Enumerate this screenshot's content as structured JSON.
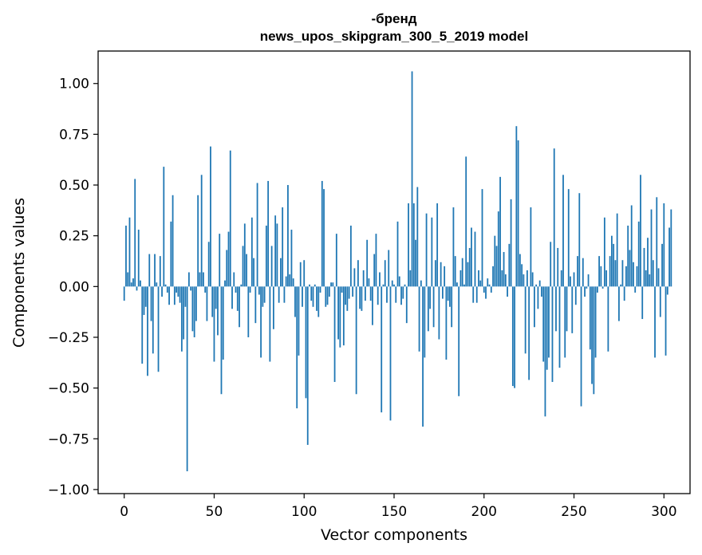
{
  "chart_data": {
    "type": "bar",
    "title_lines": [
      "-бренд",
      "news_upos_skipgram_300_5_2019 model"
    ],
    "xlabel": "Vector components",
    "ylabel": "Components values",
    "xlim": [
      -14.5,
      314.5
    ],
    "ylim": [
      -1.02,
      1.16
    ],
    "xticks": [
      0,
      50,
      100,
      150,
      200,
      250,
      300
    ],
    "xtick_labels": [
      "0",
      "50",
      "100",
      "150",
      "200",
      "250",
      "300"
    ],
    "yticks": [
      -1.0,
      -0.75,
      -0.5,
      -0.25,
      0.0,
      0.25,
      0.5,
      0.75,
      1.0
    ],
    "ytick_labels": [
      "−1.00",
      "−0.75",
      "−0.50",
      "−0.25",
      "0.00",
      "0.25",
      "0.50",
      "0.75",
      "1.00"
    ],
    "grid": false,
    "bar_color": "#1f77b4",
    "values": [
      -0.07,
      0.3,
      0.07,
      0.34,
      0.02,
      0.04,
      0.53,
      -0.02,
      0.28,
      0.03,
      -0.38,
      -0.14,
      -0.1,
      -0.44,
      0.16,
      -0.17,
      -0.33,
      0.16,
      0.02,
      -0.42,
      0.15,
      -0.05,
      0.59,
      0.01,
      -0.03,
      -0.09,
      0.32,
      0.45,
      -0.09,
      -0.03,
      -0.05,
      -0.08,
      -0.32,
      -0.26,
      -0.1,
      -0.91,
      0.07,
      -0.02,
      -0.22,
      -0.25,
      -0.17,
      0.45,
      0.07,
      0.55,
      0.07,
      -0.03,
      -0.17,
      0.22,
      0.69,
      -0.15,
      -0.37,
      -0.11,
      -0.24,
      0.26,
      -0.53,
      -0.36,
      0.03,
      0.18,
      0.27,
      0.67,
      -0.11,
      0.07,
      -0.03,
      -0.12,
      -0.2,
      0.01,
      0.2,
      0.31,
      0.16,
      -0.25,
      -0.03,
      0.34,
      0.14,
      -0.18,
      0.51,
      -0.04,
      -0.35,
      -0.1,
      -0.08,
      0.3,
      0.52,
      -0.37,
      0.2,
      -0.21,
      0.35,
      0.31,
      -0.08,
      0.14,
      0.39,
      -0.08,
      0.05,
      0.5,
      0.06,
      0.28,
      0.04,
      -0.15,
      -0.6,
      -0.34,
      0.12,
      -0.1,
      0.13,
      -0.55,
      -0.78,
      0.01,
      -0.07,
      -0.1,
      0.01,
      -0.12,
      -0.15,
      -0.03,
      0.52,
      0.48,
      -0.1,
      -0.09,
      -0.05,
      0.02,
      0.02,
      -0.47,
      0.26,
      -0.26,
      -0.3,
      -0.03,
      -0.29,
      -0.09,
      -0.12,
      -0.06,
      0.3,
      -0.05,
      0.09,
      -0.53,
      0.13,
      -0.11,
      -0.12,
      0.08,
      -0.07,
      0.23,
      0.04,
      -0.07,
      -0.19,
      0.16,
      0.26,
      -0.09,
      0.07,
      -0.62,
      0.01,
      0.13,
      -0.08,
      0.18,
      -0.66,
      0.03,
      0.01,
      -0.08,
      0.32,
      0.05,
      -0.09,
      -0.06,
      0.01,
      -0.18,
      0.41,
      0.08,
      1.06,
      0.41,
      0.23,
      0.49,
      -0.32,
      0.03,
      -0.69,
      -0.35,
      0.36,
      -0.22,
      -0.11,
      0.34,
      -0.2,
      0.13,
      0.41,
      -0.26,
      0.12,
      -0.06,
      0.1,
      -0.36,
      -0.07,
      -0.1,
      -0.2,
      0.39,
      0.15,
      0.02,
      -0.54,
      0.08,
      0.14,
      0.01,
      0.64,
      0.12,
      0.19,
      0.29,
      -0.08,
      0.27,
      -0.08,
      0.08,
      0.03,
      0.48,
      -0.03,
      -0.06,
      0.04,
      0.01,
      -0.03,
      0.1,
      0.25,
      0.2,
      0.37,
      0.54,
      0.08,
      0.17,
      0.06,
      -0.05,
      0.21,
      0.43,
      -0.49,
      -0.5,
      0.79,
      0.72,
      0.16,
      0.11,
      0.06,
      -0.33,
      0.08,
      -0.46,
      0.39,
      0.07,
      -0.2,
      0.01,
      -0.11,
      0.03,
      -0.05,
      -0.37,
      -0.64,
      -0.41,
      -0.35,
      0.22,
      -0.47,
      0.68,
      -0.22,
      0.19,
      -0.4,
      0.08,
      0.55,
      -0.35,
      -0.22,
      0.48,
      0.05,
      -0.23,
      0.07,
      -0.09,
      0.15,
      0.46,
      -0.59,
      0.14,
      -0.05,
      -0.01,
      0.06,
      -0.31,
      -0.48,
      -0.53,
      -0.35,
      -0.03,
      0.15,
      0.1,
      -0.01,
      0.34,
      0.08,
      -0.32,
      0.15,
      0.25,
      0.21,
      0.13,
      0.36,
      -0.17,
      0.01,
      0.13,
      -0.07,
      0.1,
      0.3,
      0.18,
      0.4,
      0.12,
      -0.03,
      0.1,
      0.32,
      0.55,
      -0.16,
      0.19,
      0.08,
      0.24,
      0.06,
      0.38,
      0.13,
      -0.35,
      0.44,
      0.09,
      -0.15,
      0.21,
      0.41,
      -0.34,
      -0.04,
      0.29,
      0.38
    ]
  }
}
